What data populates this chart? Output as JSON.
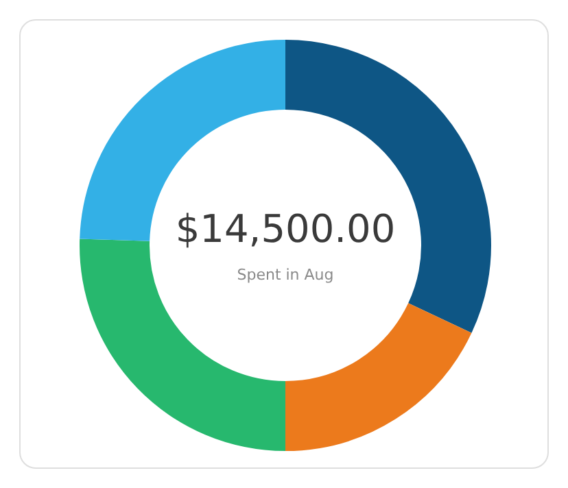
{
  "chart_data": {
    "type": "donut",
    "title": "$14,500.00",
    "subtitle": "Spent in Aug",
    "categories": [
      null,
      null,
      null,
      null
    ],
    "values": [
      32,
      18,
      25.5,
      24.5
    ],
    "colors": [
      "#0e5685",
      "#ec7a1c",
      "#27b86e",
      "#33b0e6"
    ],
    "legend": false
  }
}
